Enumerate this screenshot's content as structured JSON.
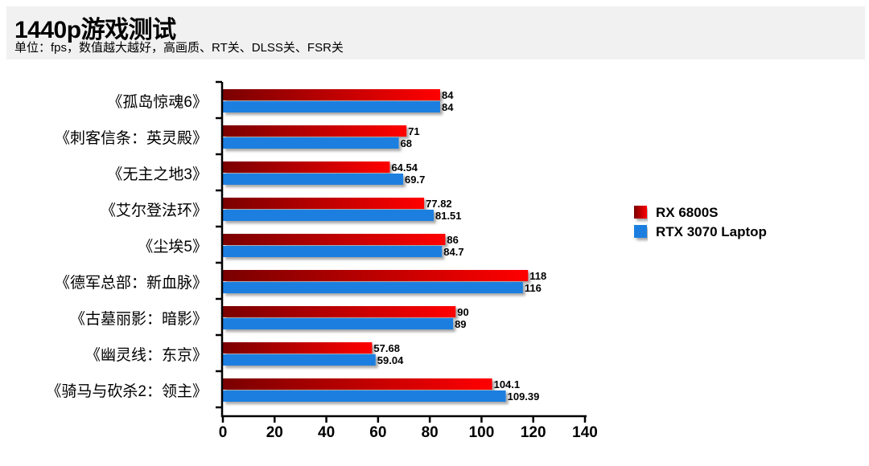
{
  "header": {
    "title": "1440p游戏测试",
    "subtitle": "单位：fps，数值越大越好，高画质、RT关、DLSS关、FSR关"
  },
  "chart_data": {
    "type": "bar",
    "orientation": "horizontal",
    "categories": [
      "《孤岛惊魂6》",
      "《刺客信条：英灵殿》",
      "《无主之地3》",
      "《艾尔登法环》",
      "《尘埃5》",
      "《德军总部：新血脉》",
      "《古墓丽影：暗影》",
      "《幽灵线：东京》",
      "《骑马与砍杀2：领主》"
    ],
    "series": [
      {
        "name": "RX 6800S",
        "color": "#ff0000",
        "color_dark": "#7a0000",
        "values": [
          84,
          71,
          64.54,
          77.82,
          86,
          118,
          90,
          57.68,
          104.1
        ]
      },
      {
        "name": "RTX 3070 Laptop",
        "color": "#1e7fe0",
        "values": [
          84,
          68,
          69.7,
          81.51,
          84.7,
          116,
          89,
          59.04,
          109.39
        ]
      }
    ],
    "xlim": [
      0,
      140
    ],
    "xticks": [
      0,
      20,
      40,
      60,
      80,
      100,
      120,
      140
    ],
    "grid": false,
    "legend_position": "right",
    "data_labels": true
  }
}
